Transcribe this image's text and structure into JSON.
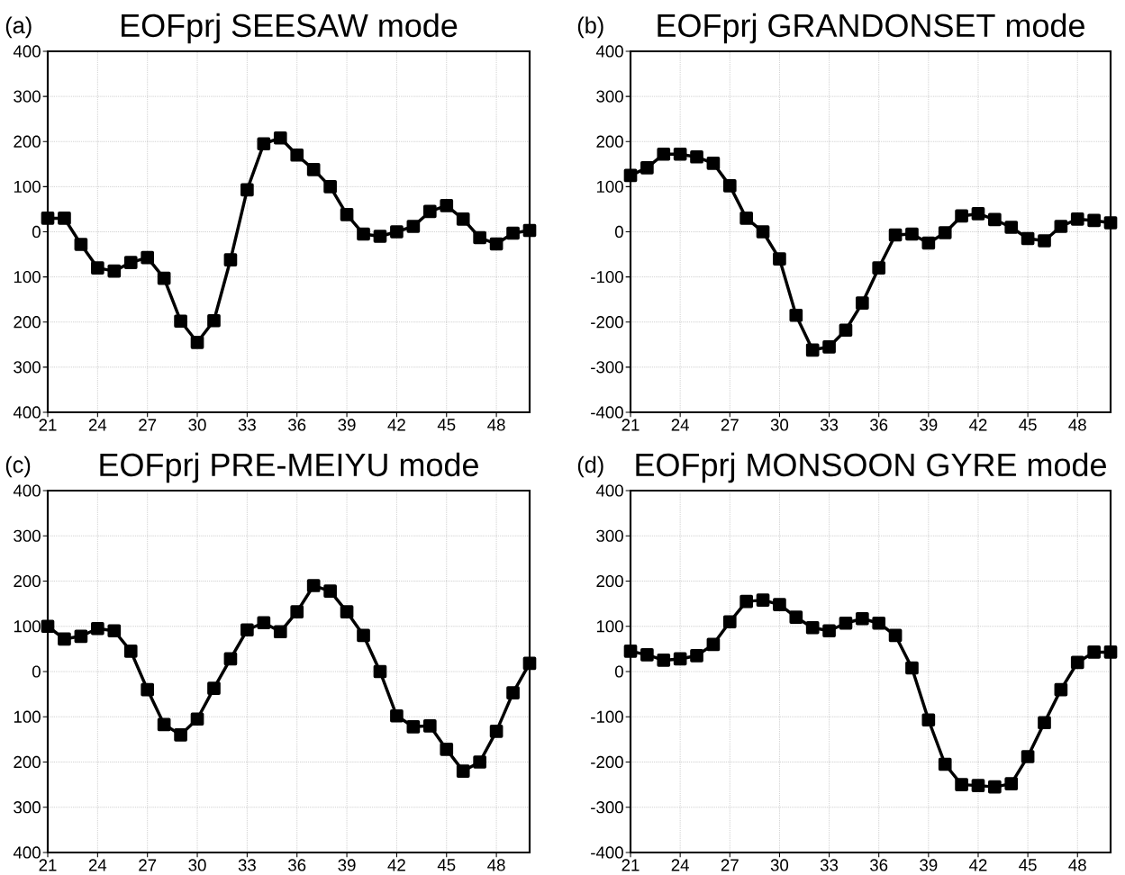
{
  "chart_data": [
    {
      "type": "line",
      "title": "EOFprj SEESAW mode",
      "annotations": [
        "(a)"
      ],
      "x": [
        21,
        22,
        23,
        24,
        25,
        26,
        27,
        28,
        29,
        30,
        31,
        32,
        33,
        34,
        35,
        36,
        37,
        38,
        39,
        40,
        41,
        42,
        43,
        44,
        45,
        46,
        47,
        48,
        49,
        50
      ],
      "series": [
        {
          "color": "#000000",
          "values": [
            30,
            30,
            -28,
            -80,
            -87,
            -68,
            -57,
            -103,
            -198,
            -245,
            -197,
            -62,
            93,
            195,
            208,
            170,
            138,
            100,
            38,
            -5,
            -10,
            0,
            12,
            45,
            58,
            28,
            -13,
            -27,
            -3,
            3
          ]
        }
      ],
      "xlim": [
        21,
        50
      ],
      "ylim": [
        -400,
        400
      ],
      "xticks": [
        21,
        24,
        27,
        30,
        33,
        36,
        39,
        42,
        45,
        48
      ],
      "yticks": [
        {
          "value": -400,
          "label": "400"
        },
        {
          "value": -300,
          "label": "300"
        },
        {
          "value": -200,
          "label": "200"
        },
        {
          "value": -100,
          "label": "100"
        },
        0,
        100,
        200,
        300,
        400
      ],
      "grid": true,
      "marker": "square",
      "line_style": "solid"
    },
    {
      "type": "line",
      "title": "EOFprj GRANDONSET mode",
      "annotations": [
        "(b)"
      ],
      "x": [
        21,
        22,
        23,
        24,
        25,
        26,
        27,
        28,
        29,
        30,
        31,
        32,
        33,
        34,
        35,
        36,
        37,
        38,
        39,
        40,
        41,
        42,
        43,
        44,
        45,
        46,
        47,
        48,
        49,
        50
      ],
      "series": [
        {
          "color": "#000000",
          "values": [
            125,
            142,
            172,
            172,
            166,
            152,
            102,
            30,
            0,
            -60,
            -185,
            -262,
            -255,
            -218,
            -158,
            -80,
            -7,
            -5,
            -25,
            -2,
            35,
            40,
            27,
            10,
            -15,
            -20,
            12,
            28,
            25,
            20
          ]
        }
      ],
      "xlim": [
        21,
        50
      ],
      "ylim": [
        -400,
        400
      ],
      "xticks": [
        21,
        24,
        27,
        30,
        33,
        36,
        39,
        42,
        45,
        48
      ],
      "yticks": [
        -400,
        -300,
        -200,
        -100,
        0,
        100,
        200,
        300,
        400
      ],
      "grid": true,
      "marker": "square",
      "line_style": "solid"
    },
    {
      "type": "line",
      "title": "EOFprj PRE-MEIYU mode",
      "annotations": [
        "(c)"
      ],
      "x": [
        21,
        22,
        23,
        24,
        25,
        26,
        27,
        28,
        29,
        30,
        31,
        32,
        33,
        34,
        35,
        36,
        37,
        38,
        39,
        40,
        41,
        42,
        43,
        44,
        45,
        46,
        47,
        48,
        49,
        50
      ],
      "series": [
        {
          "color": "#000000",
          "values": [
            100,
            72,
            78,
            95,
            90,
            45,
            -40,
            -117,
            -140,
            -105,
            -37,
            28,
            92,
            108,
            88,
            132,
            190,
            178,
            132,
            80,
            0,
            -98,
            -122,
            -120,
            -172,
            -220,
            -200,
            -132,
            -47,
            18
          ]
        }
      ],
      "xlim": [
        21,
        50
      ],
      "ylim": [
        -400,
        400
      ],
      "xticks": [
        21,
        24,
        27,
        30,
        33,
        36,
        39,
        42,
        45,
        48
      ],
      "yticks": [
        {
          "value": -400,
          "label": "400"
        },
        {
          "value": -300,
          "label": "300"
        },
        {
          "value": -200,
          "label": "200"
        },
        {
          "value": -100,
          "label": "100"
        },
        0,
        100,
        200,
        300,
        400
      ],
      "grid": true,
      "marker": "square",
      "line_style": "solid"
    },
    {
      "type": "line",
      "title": "EOFprj MONSOON GYRE mode",
      "annotations": [
        "(d)"
      ],
      "x": [
        21,
        22,
        23,
        24,
        25,
        26,
        27,
        28,
        29,
        30,
        31,
        32,
        33,
        34,
        35,
        36,
        37,
        38,
        39,
        40,
        41,
        42,
        43,
        44,
        45,
        46,
        47,
        48,
        49,
        50
      ],
      "series": [
        {
          "color": "#000000",
          "values": [
            45,
            37,
            25,
            28,
            35,
            60,
            110,
            155,
            158,
            148,
            120,
            97,
            90,
            107,
            117,
            107,
            80,
            8,
            -107,
            -205,
            -250,
            -252,
            -255,
            -248,
            -188,
            -113,
            -40,
            20,
            43,
            43
          ]
        }
      ],
      "xlim": [
        21,
        50
      ],
      "ylim": [
        -400,
        400
      ],
      "xticks": [
        21,
        24,
        27,
        30,
        33,
        36,
        39,
        42,
        45,
        48
      ],
      "yticks": [
        -400,
        -300,
        -200,
        -100,
        0,
        100,
        200,
        300,
        400
      ],
      "grid": true,
      "marker": "square",
      "line_style": "solid"
    }
  ]
}
